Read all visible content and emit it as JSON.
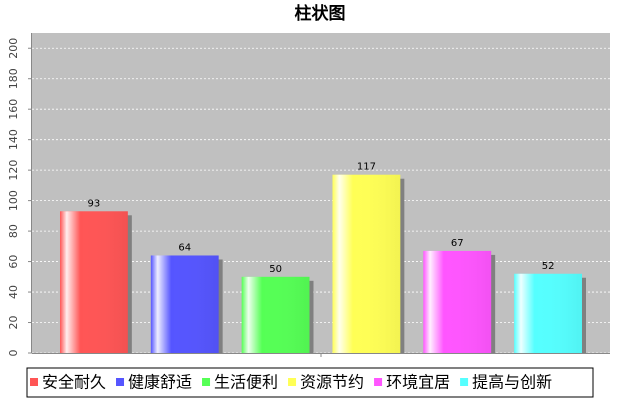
{
  "chart_data": {
    "type": "bar",
    "title": "柱状图",
    "categories": [
      null
    ],
    "series": [
      {
        "name": "安全耐久",
        "color": "#ff5555",
        "values": [
          93
        ]
      },
      {
        "name": "健康舒适",
        "color": "#5555ff",
        "values": [
          64
        ]
      },
      {
        "name": "生活便利",
        "color": "#55ff55",
        "values": [
          50
        ]
      },
      {
        "name": "资源节约",
        "color": "#ffff55",
        "values": [
          117
        ]
      },
      {
        "name": "环境宜居",
        "color": "#ff55ff",
        "values": [
          67
        ]
      },
      {
        "name": "提高与创新",
        "color": "#55ffff",
        "values": [
          52
        ]
      }
    ],
    "ylim": [
      0,
      210
    ],
    "yticks": [
      0,
      20,
      40,
      60,
      80,
      100,
      120,
      140,
      160,
      180,
      200
    ],
    "grid": true,
    "legend": "bottom"
  }
}
